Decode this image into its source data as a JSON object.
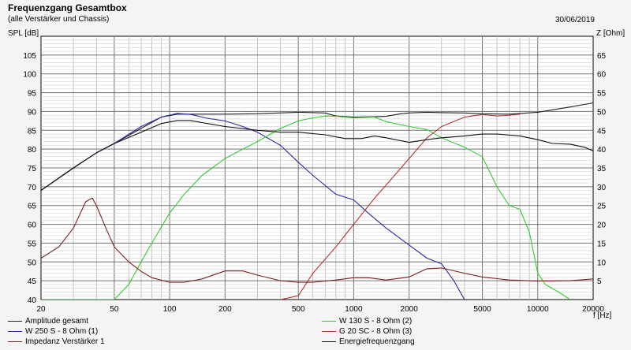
{
  "header": {
    "title": "Frequenzgang Gesamtbox",
    "subtitle": "(alle Verstärker und Chassis)",
    "date": "30/06/2019"
  },
  "chart_data": {
    "type": "line",
    "title": "Frequenzgang Gesamtbox",
    "subtitle": "(alle Verstärker und Chassis)",
    "xlabel": "f [Hz]",
    "ylabel": "SPL [dB]",
    "y2label": "Z [Ohm]",
    "xscale": "log",
    "xlim": [
      20,
      20000
    ],
    "ylim": [
      40,
      110
    ],
    "y2lim": [
      0,
      70
    ],
    "grid": true,
    "legend_position": "bottom",
    "x_ticks": [
      20,
      50,
      100,
      200,
      500,
      1000,
      2000,
      5000,
      10000,
      20000
    ],
    "x_tick_labels": [
      "20",
      "50",
      "100",
      "200",
      "500",
      "1000",
      "2000",
      "5000",
      "10000",
      "20000"
    ],
    "y_ticks": [
      40,
      45,
      50,
      55,
      60,
      65,
      70,
      75,
      80,
      85,
      90,
      95,
      100,
      105
    ],
    "y2_ticks": [
      5,
      10,
      15,
      20,
      25,
      30,
      35,
      40,
      45,
      50,
      55,
      60,
      65
    ],
    "series": [
      {
        "name": "Amplitude gesamt",
        "color": "#202020",
        "points": [
          [
            20,
            69
          ],
          [
            30,
            75
          ],
          [
            40,
            79
          ],
          [
            50,
            81.5
          ],
          [
            70,
            85.5
          ],
          [
            90,
            88.5
          ],
          [
            110,
            89.3
          ],
          [
            130,
            89.3
          ],
          [
            200,
            89.3
          ],
          [
            300,
            89.4
          ],
          [
            500,
            89.8
          ],
          [
            700,
            89.6
          ],
          [
            800,
            88.8
          ],
          [
            1000,
            88.5
          ],
          [
            1300,
            88.6
          ],
          [
            1500,
            88.7
          ],
          [
            1800,
            89.4
          ],
          [
            2000,
            89.6
          ],
          [
            2500,
            89.8
          ],
          [
            3000,
            89.7
          ],
          [
            4000,
            89.6
          ],
          [
            5000,
            89.4
          ],
          [
            7000,
            89.3
          ],
          [
            10000,
            89.8
          ],
          [
            15000,
            91.2
          ],
          [
            20000,
            92.3
          ]
        ]
      },
      {
        "name": "W 250 S - 8 Ohm (1)",
        "color": "#2a2aa8",
        "points": [
          [
            20,
            69
          ],
          [
            30,
            75
          ],
          [
            40,
            79
          ],
          [
            50,
            81.5
          ],
          [
            70,
            86
          ],
          [
            90,
            88.5
          ],
          [
            110,
            89.5
          ],
          [
            130,
            89.2
          ],
          [
            160,
            88.2
          ],
          [
            200,
            87.5
          ],
          [
            250,
            86
          ],
          [
            300,
            84.5
          ],
          [
            400,
            81
          ],
          [
            500,
            76.5
          ],
          [
            600,
            73
          ],
          [
            800,
            68
          ],
          [
            1000,
            66.5
          ],
          [
            1200,
            63
          ],
          [
            1500,
            59
          ],
          [
            2000,
            54.5
          ],
          [
            2500,
            51
          ],
          [
            3000,
            49.5
          ],
          [
            3500,
            45
          ],
          [
            4000,
            40
          ]
        ]
      },
      {
        "name": "W 130 S - 8 Ohm (2)",
        "color": "#33cc33",
        "points": [
          [
            20,
            40
          ],
          [
            30,
            40
          ],
          [
            40,
            40
          ],
          [
            50,
            40
          ],
          [
            60,
            44
          ],
          [
            70,
            50
          ],
          [
            80,
            55
          ],
          [
            100,
            63
          ],
          [
            120,
            68
          ],
          [
            150,
            73
          ],
          [
            200,
            77.5
          ],
          [
            250,
            80
          ],
          [
            300,
            82
          ],
          [
            400,
            85.5
          ],
          [
            500,
            87.5
          ],
          [
            600,
            88.3
          ],
          [
            700,
            88.8
          ],
          [
            800,
            88.7
          ],
          [
            1000,
            88.3
          ],
          [
            1300,
            88.5
          ],
          [
            1500,
            87.3
          ],
          [
            2000,
            86
          ],
          [
            2500,
            85.2
          ],
          [
            3000,
            83
          ],
          [
            4000,
            80.5
          ],
          [
            5000,
            78
          ],
          [
            6000,
            70
          ],
          [
            7000,
            65
          ],
          [
            8000,
            64
          ],
          [
            9000,
            58
          ],
          [
            10000,
            47
          ],
          [
            11000,
            44
          ],
          [
            13000,
            42
          ],
          [
            15000,
            40
          ]
        ]
      },
      {
        "name": "G 20 SC - 8 Ohm (3)",
        "color": "#b83232",
        "points": [
          [
            400,
            40
          ],
          [
            500,
            41
          ],
          [
            600,
            47
          ],
          [
            800,
            54
          ],
          [
            1000,
            60
          ],
          [
            1300,
            67
          ],
          [
            1600,
            72
          ],
          [
            2000,
            77.5
          ],
          [
            2500,
            83
          ],
          [
            3000,
            86
          ],
          [
            4000,
            88.5
          ],
          [
            5000,
            89.2
          ],
          [
            6000,
            88.8
          ],
          [
            7000,
            89
          ],
          [
            8000,
            89.3
          ]
        ]
      },
      {
        "name": "Impedanz Verstärker 1",
        "color": "#7a2020",
        "axis": "right",
        "points": [
          [
            20,
            11
          ],
          [
            25,
            14
          ],
          [
            30,
            19
          ],
          [
            35,
            26
          ],
          [
            38,
            27
          ],
          [
            40,
            25
          ],
          [
            45,
            19
          ],
          [
            50,
            14
          ],
          [
            60,
            10
          ],
          [
            70,
            7.5
          ],
          [
            80,
            5.8
          ],
          [
            100,
            4.6
          ],
          [
            120,
            4.6
          ],
          [
            150,
            5.5
          ],
          [
            200,
            7.6
          ],
          [
            250,
            7.6
          ],
          [
            300,
            6.5
          ],
          [
            400,
            5
          ],
          [
            500,
            4.6
          ],
          [
            600,
            4.6
          ],
          [
            800,
            5.2
          ],
          [
            1000,
            5.8
          ],
          [
            1200,
            5.8
          ],
          [
            1500,
            5.2
          ],
          [
            2000,
            6
          ],
          [
            2500,
            8.2
          ],
          [
            3000,
            8.4
          ],
          [
            4000,
            7
          ],
          [
            5000,
            6
          ],
          [
            7000,
            5.2
          ],
          [
            10000,
            4.9
          ],
          [
            15000,
            5
          ],
          [
            20000,
            5.5
          ]
        ]
      },
      {
        "name": "Energiefrequenzgang",
        "color": "#101010",
        "points": [
          [
            20,
            69
          ],
          [
            30,
            75
          ],
          [
            40,
            79
          ],
          [
            50,
            81.5
          ],
          [
            70,
            84.5
          ],
          [
            90,
            86.8
          ],
          [
            110,
            87.6
          ],
          [
            130,
            87.6
          ],
          [
            160,
            86.8
          ],
          [
            200,
            86
          ],
          [
            300,
            85
          ],
          [
            400,
            84.5
          ],
          [
            500,
            84.5
          ],
          [
            700,
            83.8
          ],
          [
            900,
            82.8
          ],
          [
            1100,
            82.8
          ],
          [
            1300,
            83.5
          ],
          [
            1500,
            83
          ],
          [
            2000,
            81.8
          ],
          [
            2500,
            82.5
          ],
          [
            3000,
            83
          ],
          [
            4000,
            83.5
          ],
          [
            5000,
            84
          ],
          [
            6000,
            84
          ],
          [
            8000,
            83.5
          ],
          [
            10000,
            82.5
          ],
          [
            12000,
            81.5
          ],
          [
            15000,
            81.3
          ],
          [
            18000,
            80.5
          ],
          [
            20000,
            79.5
          ]
        ]
      }
    ]
  }
}
